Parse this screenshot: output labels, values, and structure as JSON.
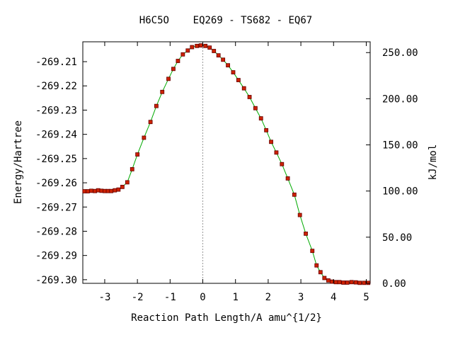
{
  "chart_data": {
    "type": "scatter",
    "title": "H6C5O    EQ269 - TS682 - EQ67",
    "xlabel": "Reaction Path Length/A amu^{1/2}",
    "ylabel": "Energy/Hartree",
    "y2label": "kJ/mol",
    "xlim": [
      -3.67,
      5.12
    ],
    "ylim": [
      -269.3015,
      -269.2018
    ],
    "y2lim": [
      0,
      261.7
    ],
    "x_ticks": [
      -3,
      -2,
      -1,
      0,
      1,
      2,
      3,
      4,
      5
    ],
    "y_ticks": [
      -269.21,
      -269.22,
      -269.23,
      -269.24,
      -269.25,
      -269.26,
      -269.27,
      -269.28,
      -269.29,
      -269.3
    ],
    "y_tick_labels": [
      "-269.21",
      "-269.22",
      "-269.23",
      "-269.24",
      "-269.25",
      "-269.26",
      "-269.27",
      "-269.28",
      "-269.29",
      "-269.30"
    ],
    "y2_ticks": [
      0,
      50,
      100,
      150,
      200,
      250
    ],
    "y2_tick_labels": [
      "0.00",
      "50.00",
      "100.00",
      "150.00",
      "200.00",
      "250.00"
    ],
    "ts_line_x": 0,
    "line_color": "#00aa00",
    "marker_color": "#cc2200",
    "marker_edge_color": "#660000",
    "ts_line_color": "#999999",
    "series": [
      {
        "x": [
          -3.62,
          -3.52,
          -3.41,
          -3.3,
          -3.2,
          -3.1,
          -3.0,
          -2.9,
          -2.8,
          -2.69,
          -2.58,
          -2.46,
          -2.31,
          -2.16,
          -2.0,
          -1.8,
          -1.6,
          -1.42,
          -1.24,
          -1.05,
          -0.9,
          -0.76,
          -0.61,
          -0.46,
          -0.33,
          -0.18,
          -0.06,
          0.08,
          0.21,
          0.34,
          0.48,
          0.62,
          0.77,
          0.93,
          1.09,
          1.26,
          1.43,
          1.61,
          1.78,
          1.94,
          2.09,
          2.25,
          2.42,
          2.6,
          2.8,
          2.97,
          3.15,
          3.35,
          3.48,
          3.6,
          3.72,
          3.84,
          3.95,
          4.07,
          4.18,
          4.3,
          4.42,
          4.55,
          4.68,
          4.8,
          4.93,
          5.06
        ],
        "y": [
          -269.2635,
          -269.2635,
          -269.2633,
          -269.2634,
          -269.2631,
          -269.2633,
          -269.2634,
          -269.2634,
          -269.2634,
          -269.2631,
          -269.2628,
          -269.2617,
          -269.2598,
          -269.2544,
          -269.2483,
          -269.2414,
          -269.2349,
          -269.2283,
          -269.2225,
          -269.2171,
          -269.213,
          -269.2097,
          -269.207,
          -269.2054,
          -269.204,
          -269.2035,
          -269.2033,
          -269.2035,
          -269.2042,
          -269.2056,
          -269.2074,
          -269.2092,
          -269.2115,
          -269.2144,
          -269.2176,
          -269.221,
          -269.2246,
          -269.2292,
          -269.2334,
          -269.2383,
          -269.2431,
          -269.2475,
          -269.2523,
          -269.2582,
          -269.2649,
          -269.2733,
          -269.281,
          -269.2881,
          -269.2941,
          -269.2969,
          -269.2993,
          -269.3003,
          -269.3008,
          -269.301,
          -269.301,
          -269.3012,
          -269.3012,
          -269.301,
          -269.3011,
          -269.3013,
          -269.3013,
          -269.3013
        ]
      }
    ]
  }
}
